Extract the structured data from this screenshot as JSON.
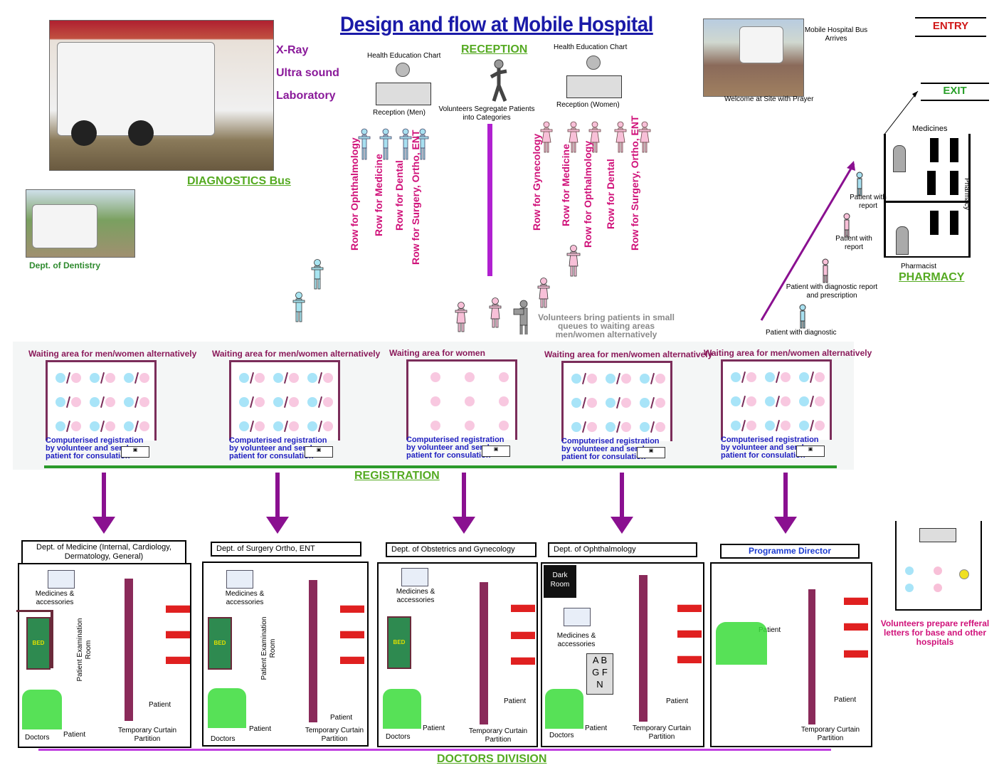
{
  "title": "Design and flow at Mobile Hospital",
  "entry_label": "ENTRY",
  "exit_label": "EXIT",
  "diagnostics": {
    "services": [
      "X-Ray",
      "Ultra sound",
      "Laboratory"
    ],
    "bus_label": "DIAGNOSTICS Bus",
    "dentistry_label": "Dept. of Dentistry"
  },
  "reception": {
    "heading": "RECEPTION",
    "men_chart": "Health Education Chart",
    "men_desk": "Reception (Men)",
    "women_chart": "Health Education Chart",
    "women_desk": "Reception (Women)",
    "volunteer": "Volunteers Segregate Patients into Categories",
    "men_rows": [
      "Row for Ophthalmology",
      "Row for Medicine",
      "Row for Dental",
      "Row for Surgery, Ortho, ENT"
    ],
    "women_rows": [
      "Row for Gynecology",
      "Row for Medicine",
      "Row for Opthalmology",
      "Row for Dental",
      "Row for Surgery, Ortho, ENT"
    ]
  },
  "arrival": {
    "bus_arrives": "Mobile Hospital Bus Arrives",
    "welcome": "Welcome at Site with Prayer"
  },
  "pharmacy": {
    "medicines": "Medicines",
    "pharmacy_vertical": "Pharmacy",
    "pharmacist": "Pharmacist",
    "heading": "PHARMACY",
    "flow": [
      "Patient with report",
      "Patient with report",
      "Patient with diagnostic report and prescription",
      "Patient with diagnostic"
    ]
  },
  "volunteers_bring": "Volunteers bring patients in small queues to waiting areas men/women alternatively",
  "registration": {
    "heading": "REGISTRATION",
    "areas": [
      {
        "title": "Waiting area for men/women alternatively",
        "type": "mixed"
      },
      {
        "title": "Waiting area for men/women alternatively",
        "type": "mixed"
      },
      {
        "title": "Waiting area for women",
        "type": "women"
      },
      {
        "title": "Waiting area for men/women alternatively",
        "type": "mixed"
      },
      {
        "title": "Waiting area for men/women alternatively",
        "type": "mixed"
      }
    ],
    "reg_text": "Computerised registration by volunteer and send patient for consulation"
  },
  "doctors": {
    "heading": "DOCTORS DIVISION",
    "departments": [
      {
        "title": "Dept. of Medicine (Internal, Cardiology, Dermatology, General)",
        "medicines": "Medicines & accessories",
        "room": "Patient Examination Room",
        "patient": "Patient",
        "patient2": "Patient",
        "doctors": "Doctors",
        "partition": "Temporary Curtain Partition"
      },
      {
        "title": "Dept. of Surgery  Ortho, ENT",
        "medicines": "Medicines & accessories",
        "room": "Patient Examination Room",
        "patient": "Patient",
        "patient2": "Patient",
        "doctors": "Doctors",
        "partition": "Temporary Curtain Partition"
      },
      {
        "title": "Dept. of Obstetrics and Gynecology",
        "medicines": "Medicines & accessories",
        "patient": "Patient",
        "patient2": "Patient",
        "doctors": "Doctors",
        "partition": "Temporary Curtain Partition"
      },
      {
        "title": "Dept. of Ophthalmology",
        "dark_room": "Dark Room",
        "medicines": "Medicines & accessories",
        "chart": "A B G F N",
        "patient": "Patient",
        "patient2": "Patient",
        "doctors": "Doctors",
        "partition": "Temporary Curtain Partition"
      },
      {
        "title": "Programme Director",
        "patient": "Patient",
        "patient2": "Patient",
        "partition": "Temporary Curtain Partition"
      }
    ],
    "bed_label": "BED",
    "referral": "Volunteers prepare refferal letters for base and other hospitals"
  }
}
